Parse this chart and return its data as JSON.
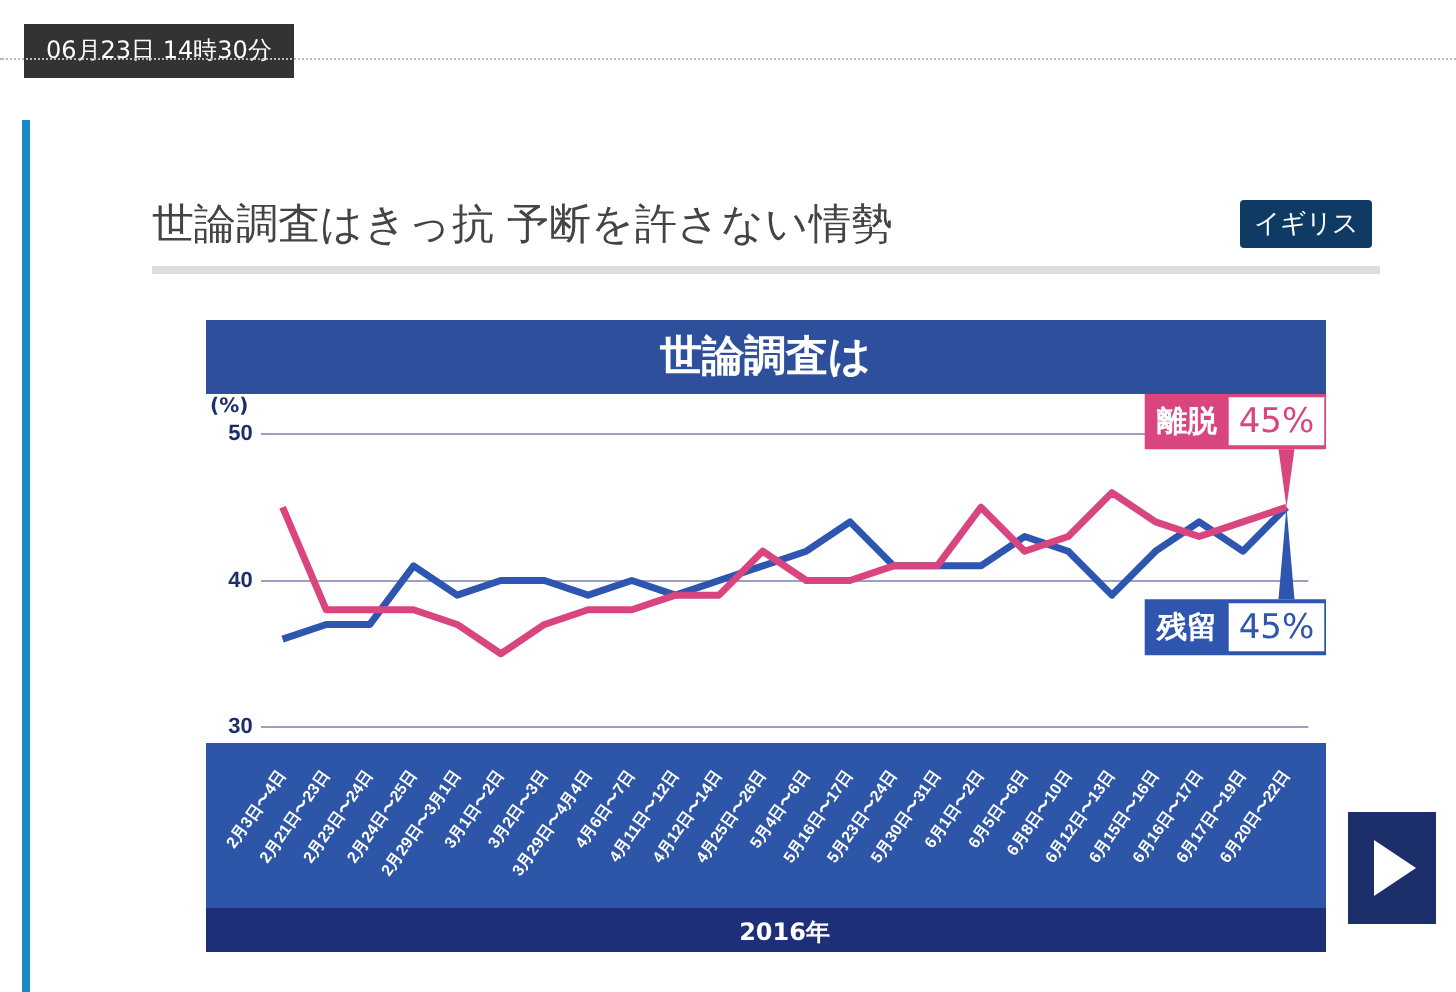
{
  "chart_data": {
    "type": "line",
    "title": "世論調査は",
    "subtitle": "世論調査はきっ抗 予断を許さない情勢",
    "annotations": [
      "06月23日 14時30分",
      "イギリス"
    ],
    "xlabel": "2016年",
    "ylabel": "(%)",
    "categories": [
      "2月3日〜4日",
      "2月21日〜23日",
      "2月23日〜24日",
      "2月24日〜25日",
      "2月29日〜3月1日",
      "3月1日〜2日",
      "3月2日〜3日",
      "3月29日〜4月4日",
      "4月6日〜7日",
      "4月11日〜12日",
      "4月12日〜14日",
      "4月25日〜26日",
      "5月4日〜6日",
      "5月16日〜17日",
      "5月23日〜24日",
      "5月30日〜31日",
      "6月1日〜2日",
      "6月5日〜6日",
      "6月8日〜10日",
      "6月12日〜13日",
      "6月15日〜16日",
      "6月16日〜17日",
      "6月17日〜19日",
      "6月20日〜22日"
    ],
    "series": [
      {
        "name": "離脱",
        "color": "#d9457f",
        "values": [
          45,
          38,
          38,
          38,
          37,
          35,
          37,
          38,
          38,
          39,
          39,
          42,
          40,
          40,
          41,
          41,
          45,
          42,
          43,
          46,
          44,
          43,
          44,
          45
        ],
        "value_labels": [
          null,
          null,
          null,
          null,
          null,
          null,
          null,
          null,
          null,
          null,
          null,
          null,
          null,
          null,
          null,
          null,
          null,
          null,
          null,
          null,
          null,
          null,
          null,
          "45%"
        ]
      },
      {
        "name": "残留",
        "color": "#2e56b0",
        "values": [
          36,
          37,
          37,
          41,
          39,
          40,
          40,
          39,
          40,
          39,
          40,
          41,
          42,
          44,
          41,
          41,
          41,
          43,
          42,
          39,
          42,
          44,
          42,
          45
        ],
        "value_labels": [
          null,
          null,
          null,
          null,
          null,
          null,
          null,
          null,
          null,
          null,
          null,
          null,
          null,
          null,
          null,
          null,
          null,
          null,
          null,
          null,
          null,
          null,
          null,
          "45%"
        ]
      }
    ],
    "ylim": [
      30,
      50
    ],
    "yticks": [
      30,
      40,
      50
    ],
    "grid": "y",
    "legend": false,
    "marker": "none",
    "line_style": "solid"
  }
}
